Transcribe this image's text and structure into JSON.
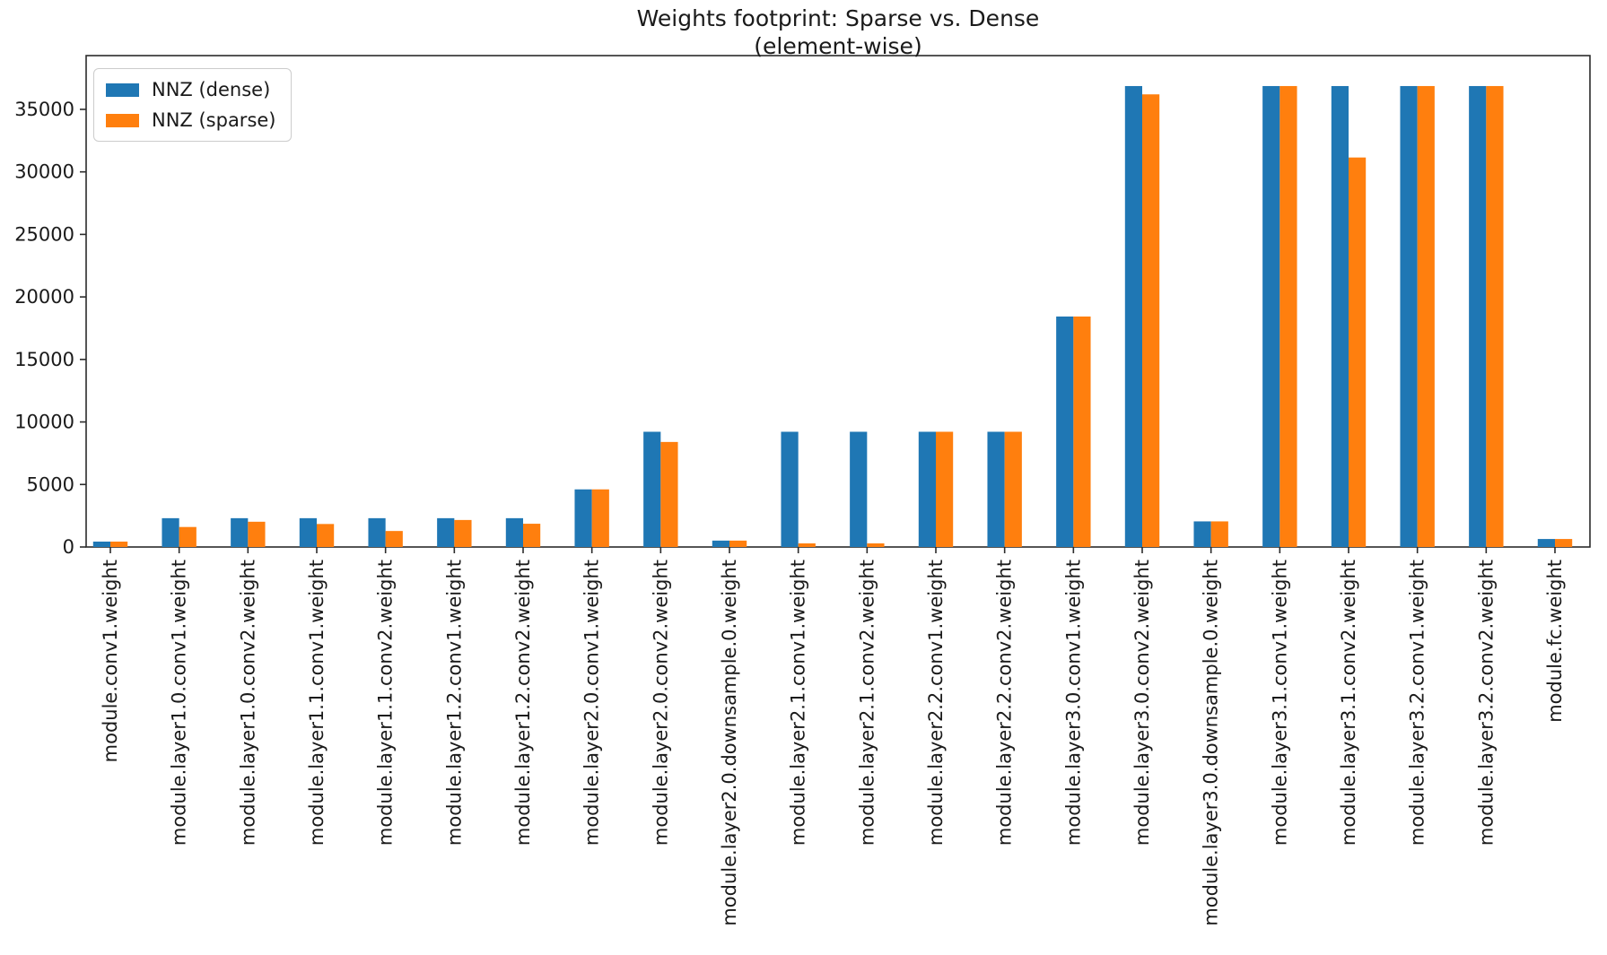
{
  "title": {
    "line1": "Weights footprint: Sparse vs. Dense",
    "line2": "(element-wise)"
  },
  "legend": {
    "entries": [
      {
        "label": "NNZ (dense)",
        "color": "#1f77b4"
      },
      {
        "label": "NNZ (sparse)",
        "color": "#ff7f0e"
      }
    ],
    "position": "upper left"
  },
  "colors": {
    "dense": "#1f77b4",
    "sparse": "#ff7f0e",
    "axis": "#2b2b2b",
    "text": "#1a1a1a",
    "background": "#ffffff"
  },
  "chart_data": {
    "type": "bar",
    "title": "Weights footprint: Sparse vs. Dense\n(element-wise)",
    "xlabel": "",
    "ylabel": "",
    "grid": false,
    "legend_position": "upper left",
    "x_tick_rotation": 90,
    "ylim": [
      0,
      39300
    ],
    "yticks": [
      0,
      5000,
      10000,
      15000,
      20000,
      25000,
      30000,
      35000
    ],
    "categories": [
      "module.conv1.weight",
      "module.layer1.0.conv1.weight",
      "module.layer1.0.conv2.weight",
      "module.layer1.1.conv1.weight",
      "module.layer1.1.conv2.weight",
      "module.layer1.2.conv1.weight",
      "module.layer1.2.conv2.weight",
      "module.layer2.0.conv1.weight",
      "module.layer2.0.conv2.weight",
      "module.layer2.0.downsample.0.weight",
      "module.layer2.1.conv1.weight",
      "module.layer2.1.conv2.weight",
      "module.layer2.2.conv1.weight",
      "module.layer2.2.conv2.weight",
      "module.layer3.0.conv1.weight",
      "module.layer3.0.conv2.weight",
      "module.layer3.0.downsample.0.weight",
      "module.layer3.1.conv1.weight",
      "module.layer3.1.conv2.weight",
      "module.layer3.2.conv1.weight",
      "module.layer3.2.conv2.weight",
      "module.fc.weight"
    ],
    "series": [
      {
        "name": "NNZ (dense)",
        "color": "#1f77b4",
        "values": [
          432,
          2304,
          2304,
          2304,
          2304,
          2304,
          2304,
          4608,
          9216,
          512,
          9216,
          9216,
          9216,
          9216,
          18432,
          36864,
          2048,
          36864,
          36864,
          36864,
          36864,
          640
        ]
      },
      {
        "name": "NNZ (sparse)",
        "color": "#ff7f0e",
        "values": [
          432,
          1600,
          2020,
          1840,
          1280,
          2160,
          1860,
          4608,
          8400,
          512,
          290,
          290,
          9216,
          9216,
          18432,
          36200,
          2048,
          36864,
          31150,
          36864,
          36864,
          640
        ]
      }
    ]
  }
}
